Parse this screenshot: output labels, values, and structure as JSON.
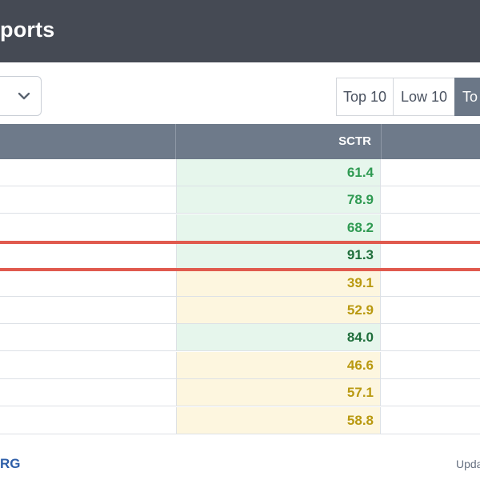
{
  "header": {
    "title": "ports"
  },
  "select": {
    "icon": "chevron-down-icon"
  },
  "filters": [
    {
      "label": "Top 10"
    },
    {
      "label": "Low 10"
    },
    {
      "label": "To",
      "active": true
    }
  ],
  "table": {
    "columns": [
      {
        "label": ""
      },
      {
        "label": "SCTR"
      },
      {
        "label": ""
      }
    ],
    "rows": [
      {
        "sctr": "61.4",
        "status": "green"
      },
      {
        "sctr": "78.9",
        "status": "green"
      },
      {
        "sctr": "68.2",
        "status": "green"
      },
      {
        "sctr": "91.3",
        "status": "green-dark",
        "highlighted": true
      },
      {
        "sctr": "39.1",
        "status": "yellow"
      },
      {
        "sctr": "52.9",
        "status": "yellow"
      },
      {
        "sctr": "84.0",
        "status": "green-dark"
      },
      {
        "sctr": "46.6",
        "status": "yellow"
      },
      {
        "sctr": "57.1",
        "status": "yellow"
      },
      {
        "sctr": "58.8",
        "status": "yellow"
      }
    ]
  },
  "colors": {
    "header_bg": "#454a54",
    "table_header_bg": "#6e7a8a",
    "green_text": "#2f9a52",
    "yellow_text": "#b99910",
    "highlight": "#e05a4e"
  },
  "footer": {
    "left": "RG",
    "right": "Upda"
  }
}
